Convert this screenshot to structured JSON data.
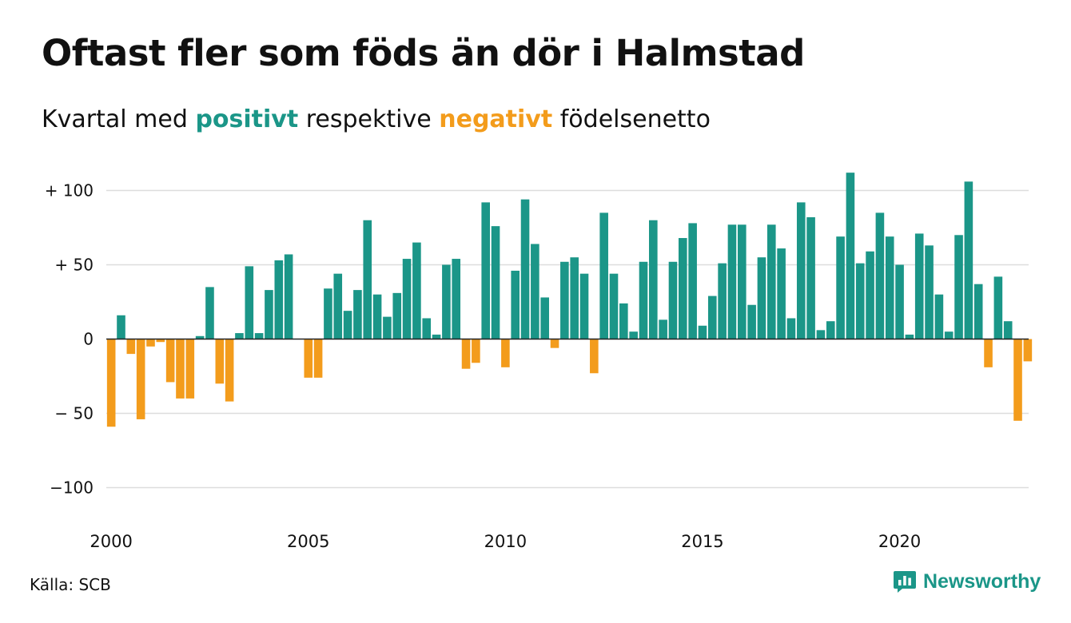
{
  "title": "Oftast fler som föds än dör i Halmstad",
  "subtitle": {
    "prefix": "Kvartal med",
    "positive_word": "positivt",
    "middle": "respektive",
    "negative_word": "negativt",
    "suffix": "födelsenetto"
  },
  "source": "Källa: SCB",
  "brand": "Newsworthy",
  "icon": "newsworthy-logo-icon",
  "colors": {
    "positive": "#1b9688",
    "negative": "#f39c1c",
    "grid": "#dddddd",
    "zero": "#222222"
  },
  "chart_data": {
    "type": "bar",
    "title": "Oftast fler som föds än dör i Halmstad",
    "subtitle": "Kvartal med positivt respektive negativt födelsenetto",
    "xlabel": "",
    "ylabel": "",
    "ylim": [
      -100,
      112
    ],
    "yticks": [
      100,
      50,
      0,
      -50,
      -100
    ],
    "ytick_labels": [
      "+ 100",
      "+  50",
      "0",
      "− 50",
      "−100"
    ],
    "xtick_labels": [
      "2000",
      "2005",
      "2010",
      "2015",
      "2020"
    ],
    "grid": true,
    "series": [
      {
        "name": "födelsenetto",
        "categories": [
          "2000 Q1",
          "2000 Q2",
          "2000 Q3",
          "2000 Q4",
          "2001 Q1",
          "2001 Q2",
          "2001 Q3",
          "2001 Q4",
          "2002 Q1",
          "2002 Q2",
          "2002 Q3",
          "2002 Q4",
          "2003 Q1",
          "2003 Q2",
          "2003 Q3",
          "2003 Q4",
          "2004 Q1",
          "2004 Q2",
          "2004 Q3",
          "2004 Q4",
          "2005 Q1",
          "2005 Q2",
          "2005 Q3",
          "2005 Q4",
          "2006 Q1",
          "2006 Q2",
          "2006 Q3",
          "2006 Q4",
          "2007 Q1",
          "2007 Q2",
          "2007 Q3",
          "2007 Q4",
          "2008 Q1",
          "2008 Q2",
          "2008 Q3",
          "2008 Q4",
          "2009 Q1",
          "2009 Q2",
          "2009 Q3",
          "2009 Q4",
          "2010 Q1",
          "2010 Q2",
          "2010 Q3",
          "2010 Q4",
          "2011 Q1",
          "2011 Q2",
          "2011 Q3",
          "2011 Q4",
          "2012 Q1",
          "2012 Q2",
          "2012 Q3",
          "2012 Q4",
          "2013 Q1",
          "2013 Q2",
          "2013 Q3",
          "2013 Q4",
          "2014 Q1",
          "2014 Q2",
          "2014 Q3",
          "2014 Q4",
          "2015 Q1",
          "2015 Q2",
          "2015 Q3",
          "2015 Q4",
          "2016 Q1",
          "2016 Q2",
          "2016 Q3",
          "2016 Q4",
          "2017 Q1",
          "2017 Q2",
          "2017 Q3",
          "2017 Q4",
          "2018 Q1",
          "2018 Q2",
          "2018 Q3",
          "2018 Q4",
          "2019 Q1",
          "2019 Q2",
          "2019 Q3",
          "2019 Q4",
          "2020 Q1",
          "2020 Q2",
          "2020 Q3",
          "2020 Q4",
          "2021 Q1",
          "2021 Q2",
          "2021 Q3",
          "2021 Q4",
          "2022 Q1",
          "2022 Q2",
          "2022 Q3",
          "2022 Q4",
          "2023 Q1",
          "2023 Q2"
        ],
        "values": [
          -59,
          16,
          -10,
          -54,
          -5,
          -2,
          -29,
          -40,
          -40,
          2,
          35,
          -30,
          -42,
          4,
          49,
          4,
          33,
          53,
          57,
          0,
          -26,
          -26,
          34,
          44,
          19,
          33,
          80,
          30,
          15,
          31,
          54,
          65,
          14,
          3,
          50,
          54,
          -20,
          -16,
          92,
          76,
          -19,
          46,
          94,
          64,
          28,
          -6,
          52,
          55,
          44,
          -23,
          85,
          44,
          24,
          5,
          52,
          80,
          13,
          52,
          68,
          78,
          9,
          29,
          51,
          77,
          77,
          23,
          55,
          77,
          61,
          14,
          92,
          82,
          6,
          12,
          69,
          112,
          51,
          59,
          85,
          69,
          50,
          3,
          71,
          63,
          30,
          5,
          70,
          106,
          37,
          -19,
          42,
          12,
          -55,
          -15
        ]
      }
    ]
  }
}
